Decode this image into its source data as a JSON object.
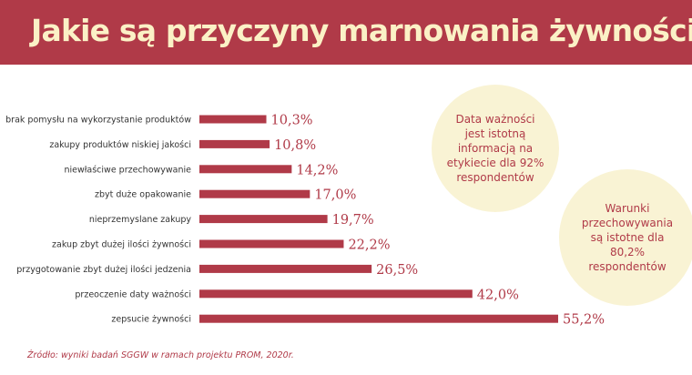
{
  "header": {
    "title": "Jakie są przyczyny marnowania żywności?"
  },
  "colors": {
    "brand": "#b03a48",
    "title_text": "#fbf1c6",
    "bubble_fill": "#f9f3d4",
    "label_text": "#333333"
  },
  "chart_data": {
    "type": "bar",
    "orientation": "horizontal",
    "title": "",
    "xlabel": "",
    "ylabel": "",
    "xlim": [
      0,
      55.2
    ],
    "grid": false,
    "legend": "none",
    "categories": [
      "brak pomysłu na wykorzystanie produktów",
      "zakupy produktów niskiej jakości",
      "niewłaściwe przechowywanie",
      "zbyt duże opakowanie",
      "nieprzemyslane zakupy",
      "zakup zbyt dużej ilości żywności",
      "przygotowanie zbyt dużej ilości jedzenia",
      "przeoczenie daty ważności",
      "zepsucie żywności"
    ],
    "values": [
      10.3,
      10.8,
      14.2,
      17.0,
      19.7,
      22.2,
      26.5,
      42.0,
      55.2
    ],
    "value_labels": [
      "10,3%",
      "10,8%",
      "14,2%",
      "17,0%",
      "19,7%",
      "22,2%",
      "26,5%",
      "42,0%",
      "55,2%"
    ]
  },
  "bubbles": [
    {
      "text": "Data ważności jest istotną informacją na etykiecie dla 92% respondentów"
    },
    {
      "text": "Warunki przechowywania są istotne dla 80,2% respondentów"
    }
  ],
  "source": "Źródło: wyniki badań SGGW w ramach projektu PROM, 2020r."
}
